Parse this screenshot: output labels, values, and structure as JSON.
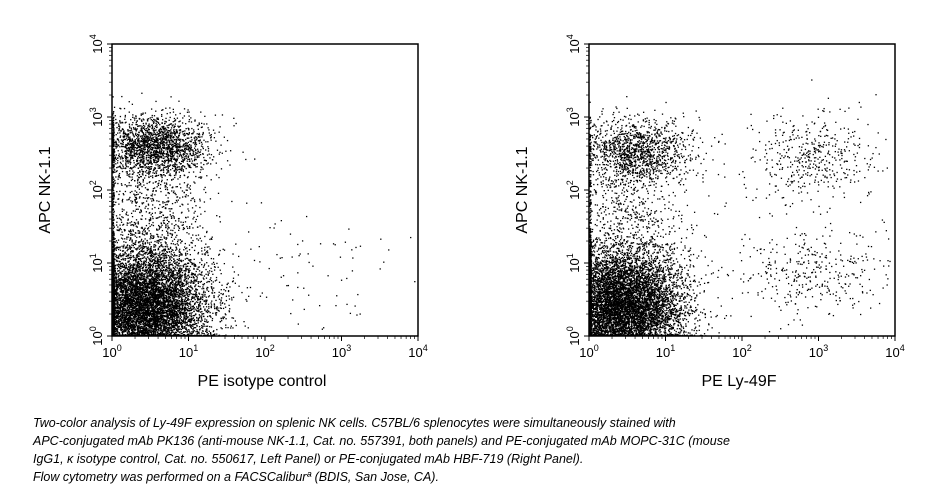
{
  "chart_data": [
    {
      "type": "scatter",
      "panel": "left",
      "title": "",
      "xlabel": "PE isotype control",
      "ylabel": "APC NK-1.1",
      "xscale": "log",
      "yscale": "log",
      "xlim": [
        1,
        10000
      ],
      "ylim": [
        1,
        10000
      ],
      "xticks": [
        {
          "base": "10",
          "exp": "0",
          "value": 1
        },
        {
          "base": "10",
          "exp": "1",
          "value": 10
        },
        {
          "base": "10",
          "exp": "2",
          "value": 100
        },
        {
          "base": "10",
          "exp": "3",
          "value": 1000
        },
        {
          "base": "10",
          "exp": "4",
          "value": 10000
        }
      ],
      "yticks": [
        {
          "base": "10",
          "exp": "0",
          "value": 1
        },
        {
          "base": "10",
          "exp": "1",
          "value": 10
        },
        {
          "base": "10",
          "exp": "2",
          "value": 100
        },
        {
          "base": "10",
          "exp": "3",
          "value": 1000
        },
        {
          "base": "10",
          "exp": "4",
          "value": 10000
        }
      ],
      "grid": false,
      "point_color": "#000000",
      "populations": [
        {
          "x_center": 2.5,
          "y_center": 2.5,
          "x_spread_decades": 0.42,
          "y_spread_decades": 0.42,
          "relative_density": 1.0
        },
        {
          "x_center": 3.5,
          "y_center": 400,
          "x_spread_decades": 0.35,
          "y_spread_decades": 0.22,
          "relative_density": 0.22
        },
        {
          "x_center": 3.0,
          "y_center": 60,
          "x_spread_decades": 0.4,
          "y_spread_decades": 0.45,
          "relative_density": 0.08
        },
        {
          "x_center": 300,
          "y_center": 8,
          "x_spread_decades": 0.8,
          "y_spread_decades": 0.35,
          "relative_density": 0.01
        }
      ]
    },
    {
      "type": "scatter",
      "panel": "right",
      "title": "",
      "xlabel": "PE Ly-49F",
      "ylabel": "APC NK-1.1",
      "xscale": "log",
      "yscale": "log",
      "xlim": [
        1,
        10000
      ],
      "ylim": [
        1,
        10000
      ],
      "xticks": [
        {
          "base": "10",
          "exp": "0",
          "value": 1
        },
        {
          "base": "10",
          "exp": "1",
          "value": 10
        },
        {
          "base": "10",
          "exp": "2",
          "value": 100
        },
        {
          "base": "10",
          "exp": "3",
          "value": 1000
        },
        {
          "base": "10",
          "exp": "4",
          "value": 10000
        }
      ],
      "yticks": [
        {
          "base": "10",
          "exp": "0",
          "value": 1
        },
        {
          "base": "10",
          "exp": "1",
          "value": 10
        },
        {
          "base": "10",
          "exp": "2",
          "value": 100
        },
        {
          "base": "10",
          "exp": "3",
          "value": 1000
        },
        {
          "base": "10",
          "exp": "4",
          "value": 10000
        }
      ],
      "grid": false,
      "point_color": "#000000",
      "populations": [
        {
          "x_center": 2.5,
          "y_center": 2.5,
          "x_spread_decades": 0.42,
          "y_spread_decades": 0.42,
          "relative_density": 1.0
        },
        {
          "x_center": 4.0,
          "y_center": 350,
          "x_spread_decades": 0.35,
          "y_spread_decades": 0.22,
          "relative_density": 0.14
        },
        {
          "x_center": 3.0,
          "y_center": 60,
          "x_spread_decades": 0.4,
          "y_spread_decades": 0.45,
          "relative_density": 0.06
        },
        {
          "x_center": 800,
          "y_center": 300,
          "x_spread_decades": 0.45,
          "y_spread_decades": 0.3,
          "relative_density": 0.05
        },
        {
          "x_center": 800,
          "y_center": 8,
          "x_spread_decades": 0.5,
          "y_spread_decades": 0.3,
          "relative_density": 0.04
        }
      ]
    }
  ],
  "caption": {
    "lines": [
      "Two-color analysis of Ly-49F expression on splenic NK cells. C57BL/6 splenocytes were simultaneously stained with",
      "APC-conjugated mAb PK136 (anti-mouse NK-1.1, Cat. no. 557391, both panels) and PE-conjugated mAb MOPC-31C (mouse",
      "IgG1, κ isotype control, Cat. no. 550617, Left Panel) or PE-conjugated mAb HBF-719 (Right Panel).",
      "Flow cytometry was performed on a FACSCaliburª (BDIS, San Jose, CA)."
    ]
  }
}
